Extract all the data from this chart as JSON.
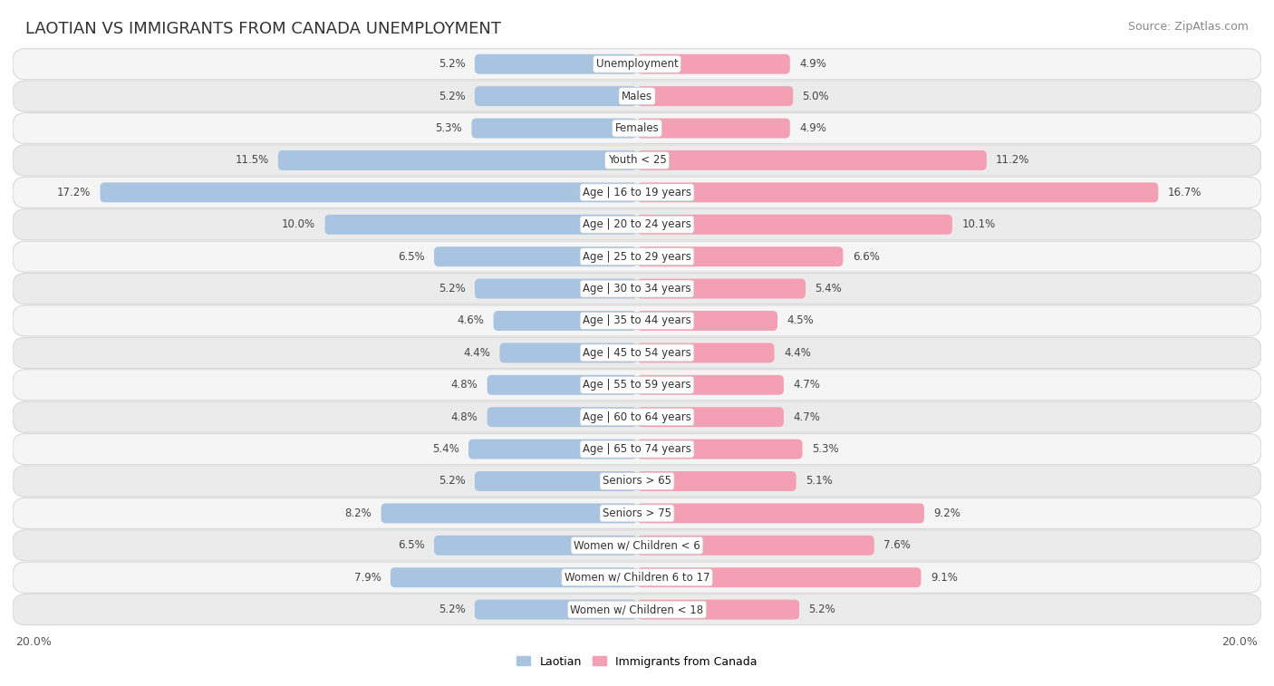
{
  "title": "LAOTIAN VS IMMIGRANTS FROM CANADA UNEMPLOYMENT",
  "source": "Source: ZipAtlas.com",
  "categories": [
    "Unemployment",
    "Males",
    "Females",
    "Youth < 25",
    "Age | 16 to 19 years",
    "Age | 20 to 24 years",
    "Age | 25 to 29 years",
    "Age | 30 to 34 years",
    "Age | 35 to 44 years",
    "Age | 45 to 54 years",
    "Age | 55 to 59 years",
    "Age | 60 to 64 years",
    "Age | 65 to 74 years",
    "Seniors > 65",
    "Seniors > 75",
    "Women w/ Children < 6",
    "Women w/ Children 6 to 17",
    "Women w/ Children < 18"
  ],
  "laotian": [
    5.2,
    5.2,
    5.3,
    11.5,
    17.2,
    10.0,
    6.5,
    5.2,
    4.6,
    4.4,
    4.8,
    4.8,
    5.4,
    5.2,
    8.2,
    6.5,
    7.9,
    5.2
  ],
  "canada": [
    4.9,
    5.0,
    4.9,
    11.2,
    16.7,
    10.1,
    6.6,
    5.4,
    4.5,
    4.4,
    4.7,
    4.7,
    5.3,
    5.1,
    9.2,
    7.6,
    9.1,
    5.2
  ],
  "laotian_color": "#a8c4e0",
  "canada_color": "#f4a0b4",
  "row_bg_even": "#f5f5f5",
  "row_bg_odd": "#ebebeb",
  "row_border_color": "#d8d8d8",
  "max_val": 20.0,
  "legend_laotian": "Laotian",
  "legend_canada": "Immigrants from Canada",
  "axis_label_left": "20.0%",
  "axis_label_right": "20.0%",
  "title_fontsize": 13,
  "source_fontsize": 9,
  "bar_value_fontsize": 8.5,
  "category_fontsize": 8.5,
  "legend_fontsize": 9
}
